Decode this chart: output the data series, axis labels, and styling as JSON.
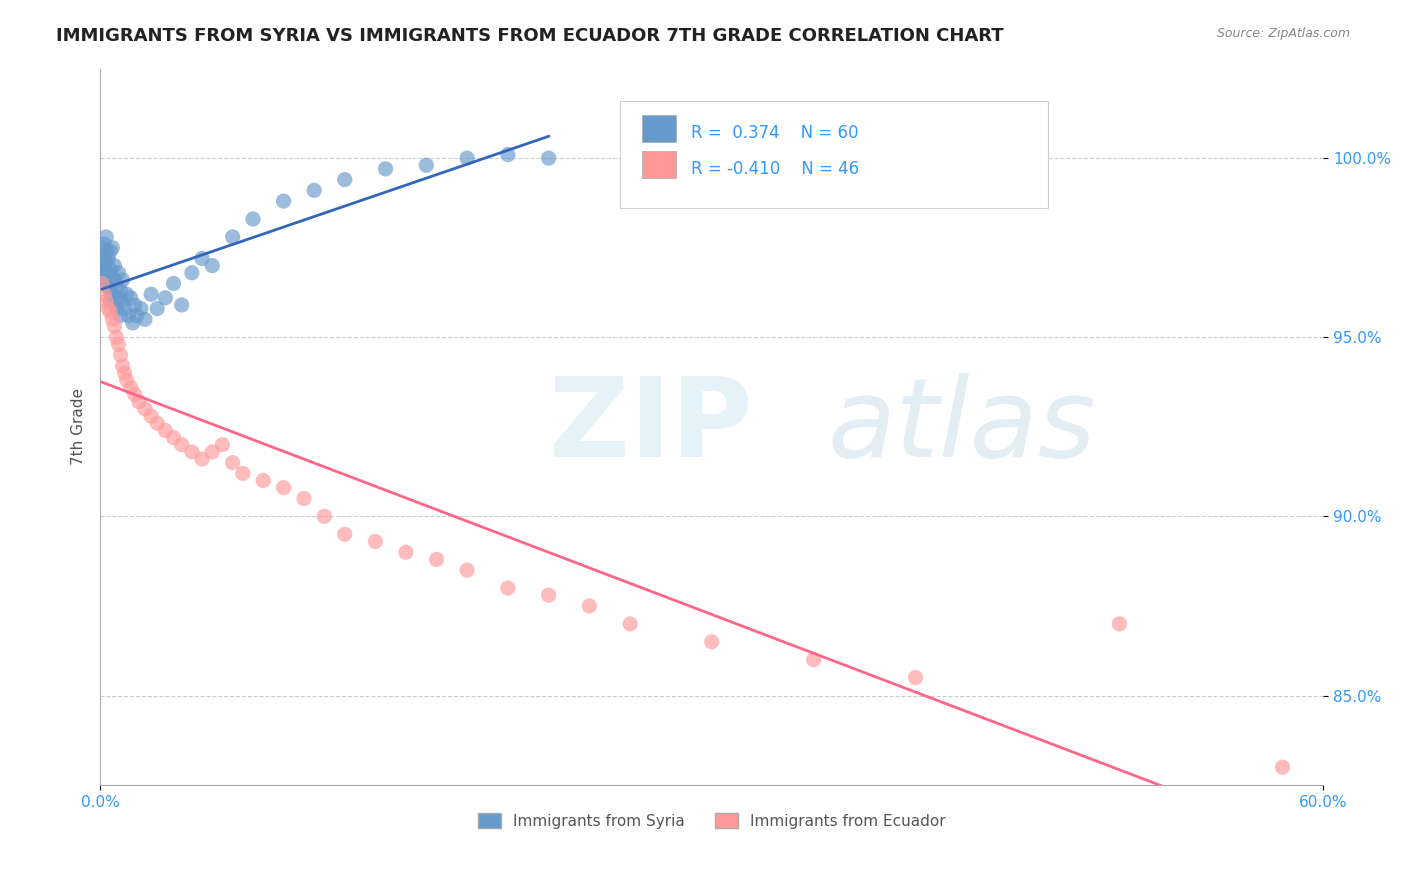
{
  "title": "IMMIGRANTS FROM SYRIA VS IMMIGRANTS FROM ECUADOR 7TH GRADE CORRELATION CHART",
  "source": "Source: ZipAtlas.com",
  "ylabel": "7th Grade",
  "y_ticks": [
    0.85,
    0.9,
    0.95,
    1.0
  ],
  "y_tick_labels": [
    "85.0%",
    "90.0%",
    "95.0%",
    "100.0%"
  ],
  "x_min": 0.0,
  "x_max": 0.6,
  "y_min": 0.825,
  "y_max": 1.025,
  "syria_R": 0.374,
  "syria_N": 60,
  "ecuador_R": -0.41,
  "ecuador_N": 46,
  "syria_color": "#6699CC",
  "ecuador_color": "#FF9999",
  "syria_line_color": "#3366BB",
  "ecuador_line_color": "#FF6688",
  "legend_syria_label": "Immigrants from Syria",
  "legend_ecuador_label": "Immigrants from Ecuador",
  "background_color": "#ffffff",
  "syria_x": [
    0.001,
    0.001,
    0.001,
    0.002,
    0.002,
    0.002,
    0.002,
    0.003,
    0.003,
    0.003,
    0.003,
    0.003,
    0.004,
    0.004,
    0.004,
    0.005,
    0.005,
    0.005,
    0.005,
    0.006,
    0.006,
    0.006,
    0.007,
    0.007,
    0.007,
    0.008,
    0.008,
    0.009,
    0.009,
    0.01,
    0.01,
    0.011,
    0.011,
    0.012,
    0.013,
    0.014,
    0.015,
    0.016,
    0.017,
    0.018,
    0.02,
    0.022,
    0.025,
    0.028,
    0.032,
    0.036,
    0.04,
    0.045,
    0.05,
    0.055,
    0.065,
    0.075,
    0.09,
    0.105,
    0.12,
    0.14,
    0.16,
    0.18,
    0.2,
    0.22
  ],
  "syria_y": [
    0.97,
    0.975,
    0.968,
    0.972,
    0.976,
    0.969,
    0.966,
    0.974,
    0.971,
    0.968,
    0.965,
    0.978,
    0.967,
    0.972,
    0.964,
    0.969,
    0.963,
    0.974,
    0.96,
    0.967,
    0.962,
    0.975,
    0.966,
    0.96,
    0.97,
    0.958,
    0.964,
    0.961,
    0.968,
    0.956,
    0.963,
    0.96,
    0.966,
    0.958,
    0.962,
    0.956,
    0.961,
    0.954,
    0.959,
    0.956,
    0.958,
    0.955,
    0.962,
    0.958,
    0.961,
    0.965,
    0.959,
    0.968,
    0.972,
    0.97,
    0.978,
    0.983,
    0.988,
    0.991,
    0.994,
    0.997,
    0.998,
    1.0,
    1.001,
    1.0
  ],
  "ecuador_x": [
    0.001,
    0.002,
    0.003,
    0.004,
    0.005,
    0.006,
    0.007,
    0.008,
    0.009,
    0.01,
    0.011,
    0.012,
    0.013,
    0.015,
    0.017,
    0.019,
    0.022,
    0.025,
    0.028,
    0.032,
    0.036,
    0.04,
    0.045,
    0.05,
    0.055,
    0.06,
    0.065,
    0.07,
    0.08,
    0.09,
    0.1,
    0.11,
    0.12,
    0.135,
    0.15,
    0.165,
    0.18,
    0.2,
    0.22,
    0.24,
    0.26,
    0.3,
    0.35,
    0.4,
    0.5,
    0.58
  ],
  "ecuador_y": [
    0.965,
    0.962,
    0.96,
    0.958,
    0.957,
    0.955,
    0.953,
    0.95,
    0.948,
    0.945,
    0.942,
    0.94,
    0.938,
    0.936,
    0.934,
    0.932,
    0.93,
    0.928,
    0.926,
    0.924,
    0.922,
    0.92,
    0.918,
    0.916,
    0.918,
    0.92,
    0.915,
    0.912,
    0.91,
    0.908,
    0.905,
    0.9,
    0.895,
    0.893,
    0.89,
    0.888,
    0.885,
    0.88,
    0.878,
    0.875,
    0.87,
    0.865,
    0.86,
    0.855,
    0.87,
    0.83
  ]
}
